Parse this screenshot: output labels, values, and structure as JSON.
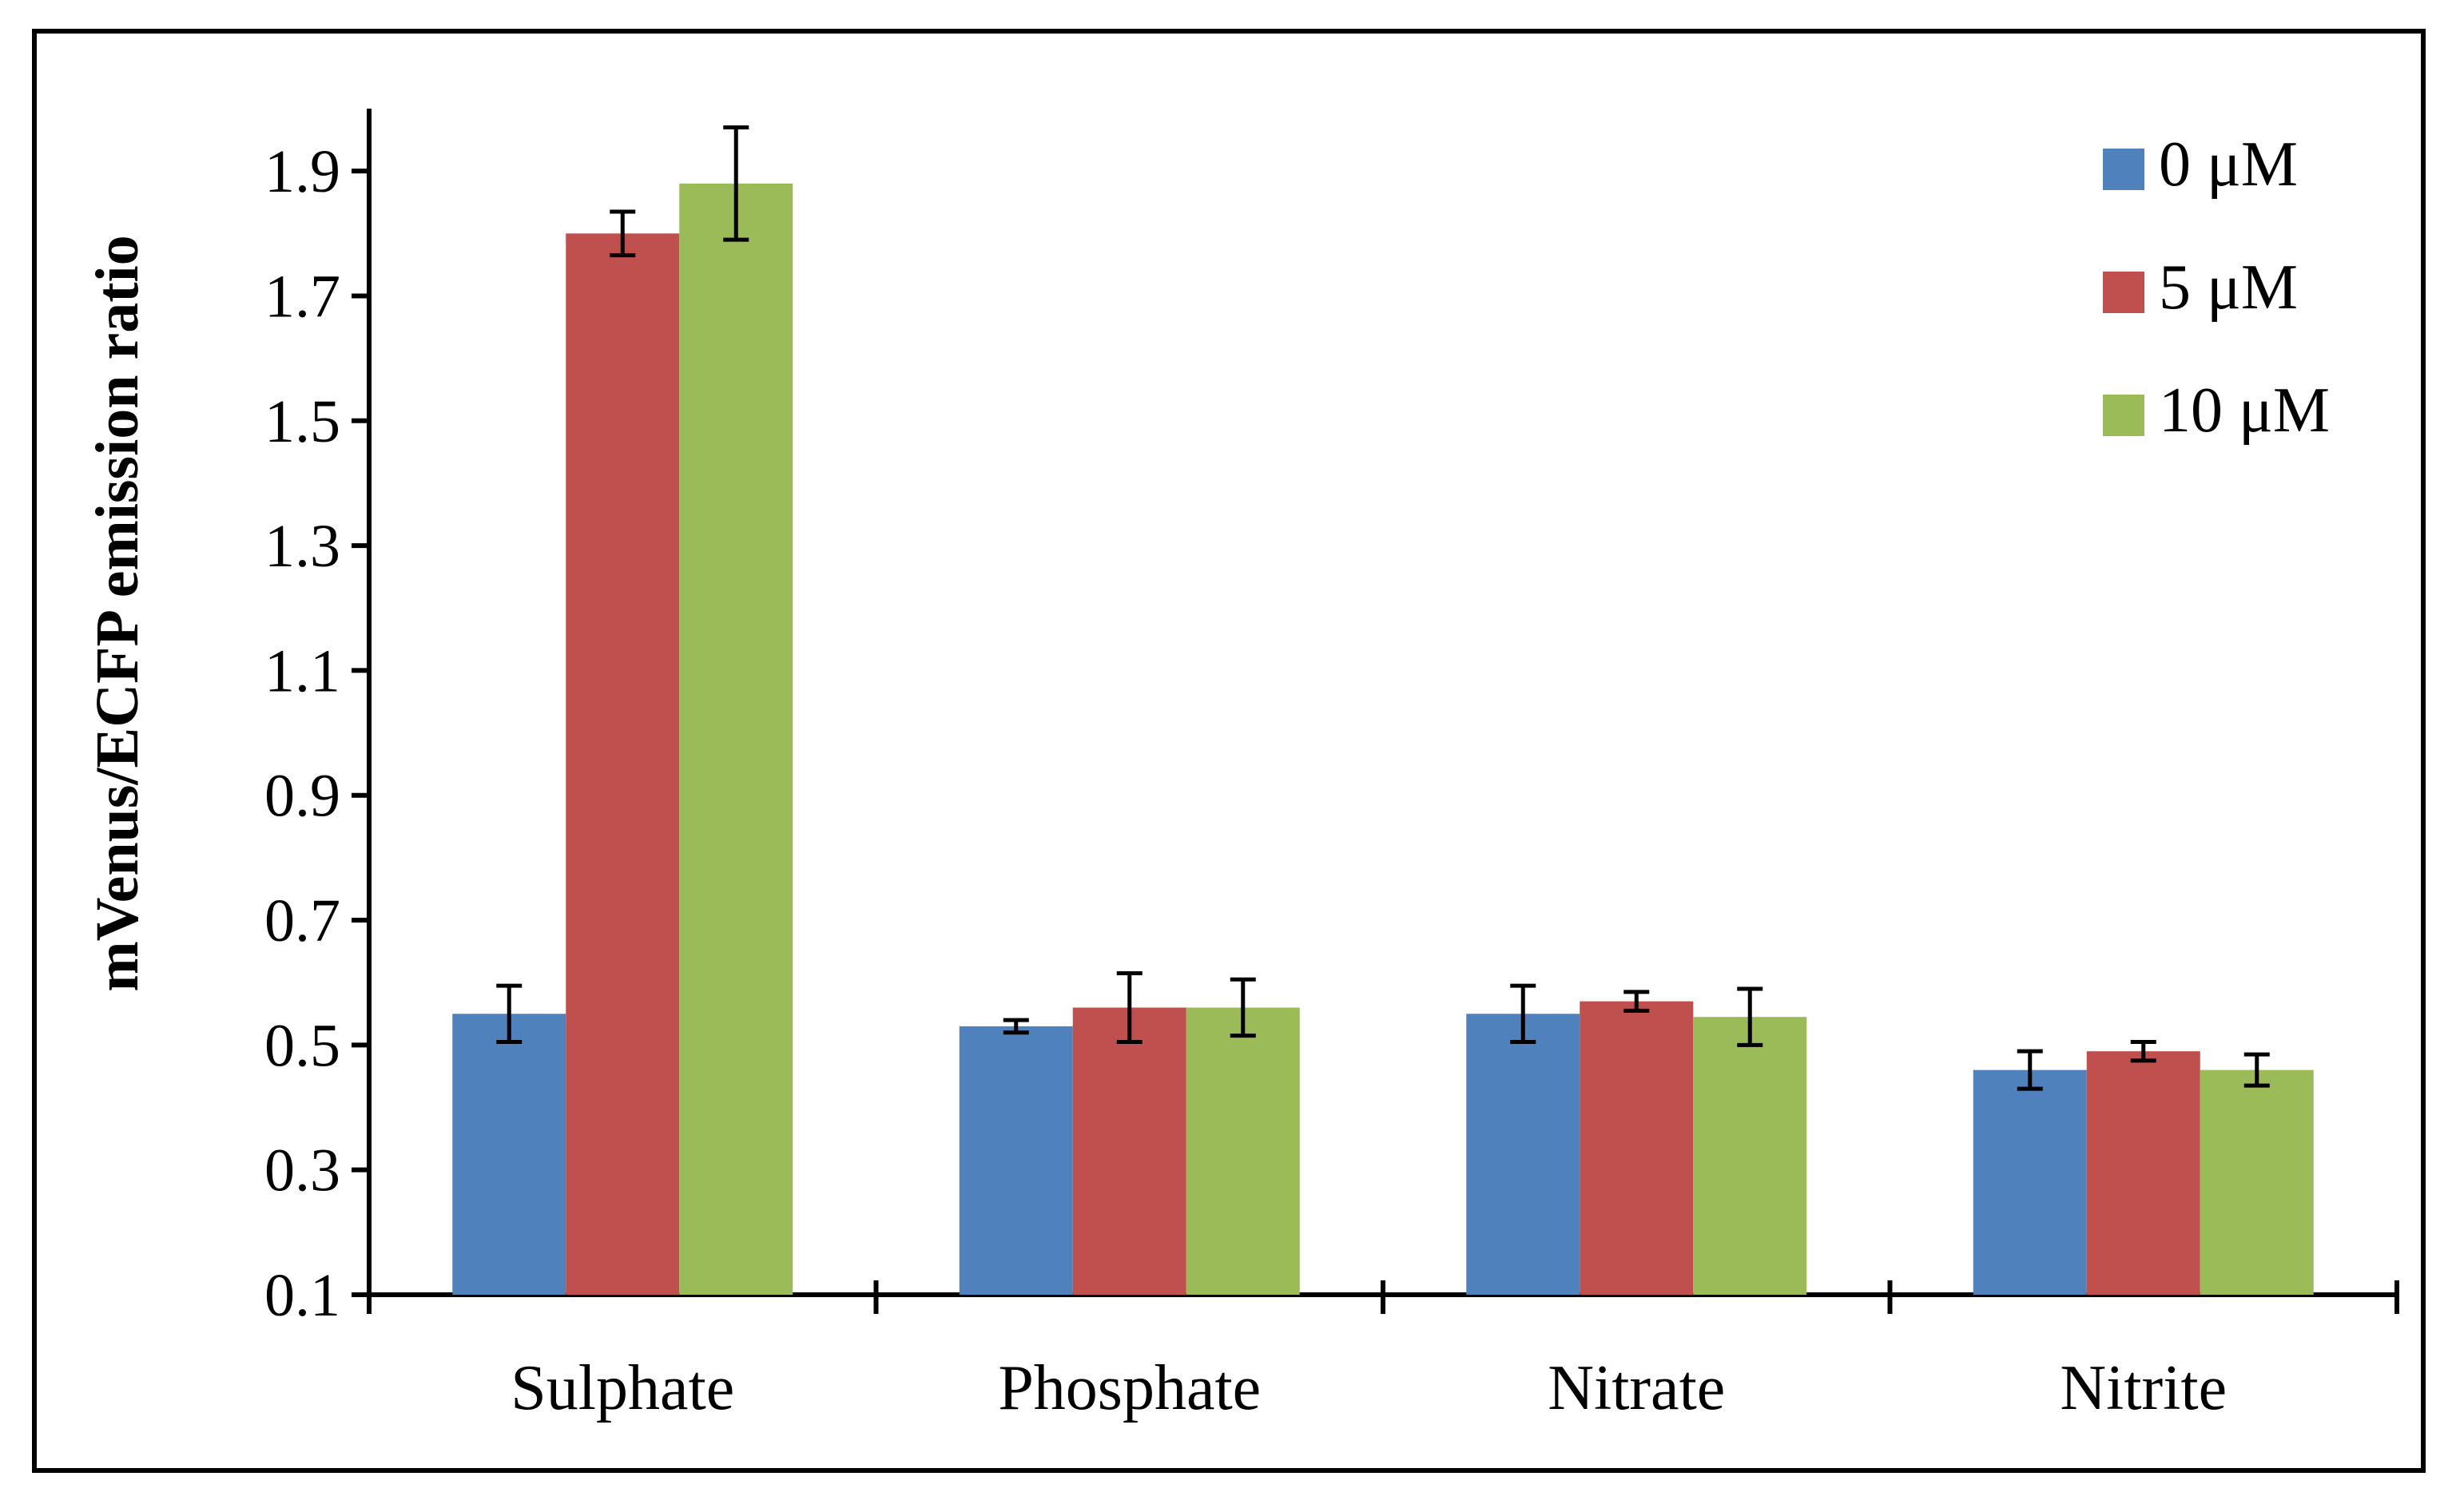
{
  "chart_data": {
    "type": "bar",
    "title": "",
    "xlabel": "",
    "ylabel": "mVenus/ECFP emission ratio",
    "categories": [
      "Sulphate",
      "Phosphate",
      "Nitrate",
      "Nitrite"
    ],
    "series": [
      {
        "name": "0 μM",
        "color": "#4F81BD",
        "values": [
          0.55,
          0.53,
          0.55,
          0.46
        ],
        "errors": [
          0.045,
          0.01,
          0.045,
          0.03
        ]
      },
      {
        "name": "5 μM",
        "color": "#C0504D",
        "values": [
          1.8,
          0.56,
          0.57,
          0.49
        ],
        "errors": [
          0.035,
          0.055,
          0.015,
          0.015
        ]
      },
      {
        "name": "10 μM",
        "color": "#9BBB59",
        "values": [
          1.88,
          0.56,
          0.545,
          0.46
        ],
        "errors": [
          0.09,
          0.045,
          0.045,
          0.025
        ]
      }
    ],
    "ylim": [
      0.1,
      2.0
    ],
    "yticks": [
      "0.1",
      "0.3",
      "0.5",
      "0.7",
      "0.9",
      "1.1",
      "1.3",
      "1.5",
      "1.7",
      "1.9"
    ],
    "legend_position": "top-right",
    "grid": false
  }
}
